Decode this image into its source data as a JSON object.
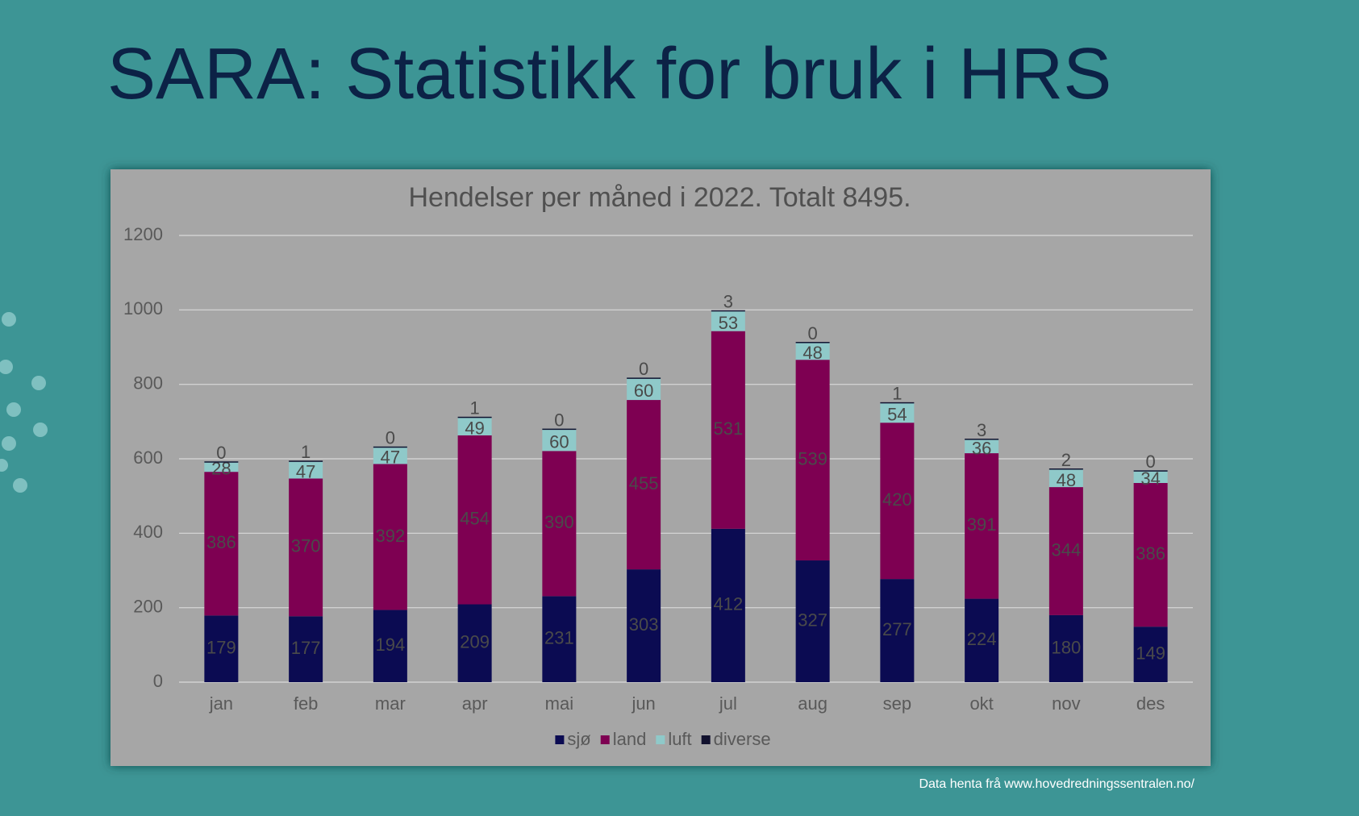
{
  "slide_title": "SARA: Statistikk for bruk i HRS",
  "footer": "Data henta frå www.hovedredningssentralen.no/",
  "chart_data": {
    "type": "bar",
    "stacked": true,
    "title": "Hendelser per måned i 2022. Totalt 8495.",
    "categories": [
      "jan",
      "feb",
      "mar",
      "apr",
      "mai",
      "jun",
      "jul",
      "aug",
      "sep",
      "okt",
      "nov",
      "des"
    ],
    "series": [
      {
        "name": "sjø",
        "color": "#0b0b52",
        "values": [
          179,
          177,
          194,
          209,
          231,
          303,
          412,
          327,
          277,
          224,
          180,
          149
        ]
      },
      {
        "name": "land",
        "color": "#7e0052",
        "values": [
          386,
          370,
          392,
          454,
          390,
          455,
          531,
          539,
          420,
          391,
          344,
          386
        ]
      },
      {
        "name": "luft",
        "color": "#8fc9c9",
        "values": [
          28,
          47,
          47,
          49,
          60,
          60,
          53,
          48,
          54,
          36,
          48,
          34
        ]
      },
      {
        "name": "diverse",
        "color": "#11112e",
        "values": [
          0,
          1,
          0,
          1,
          0,
          0,
          3,
          0,
          1,
          3,
          2,
          0
        ]
      }
    ],
    "ylim": [
      0,
      1200
    ],
    "yticks": [
      0,
      200,
      400,
      600,
      800,
      1000,
      1200
    ],
    "grid": true,
    "legend": "bottom"
  }
}
